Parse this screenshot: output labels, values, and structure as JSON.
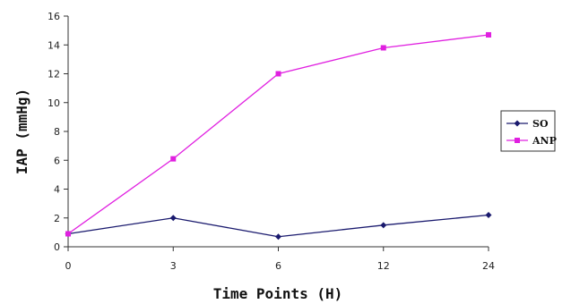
{
  "chart_data": {
    "type": "line",
    "title": "",
    "xlabel": "Time Points (H)",
    "ylabel": "IAP (mmHg)",
    "categories": [
      "0",
      "3",
      "6",
      "12",
      "24"
    ],
    "ylim": [
      0,
      16
    ],
    "yticks": [
      "0",
      "2",
      "4",
      "6",
      "8",
      "10",
      "12",
      "14",
      "16"
    ],
    "grid": false,
    "legend_position": "right",
    "series": [
      {
        "name": "SO",
        "values": [
          0.9,
          2.0,
          0.7,
          1.5,
          2.2
        ],
        "color": "#1a1a6e",
        "marker": "diamond"
      },
      {
        "name": "ANP",
        "values": [
          0.9,
          6.1,
          12.0,
          13.8,
          14.7
        ],
        "color": "#e020e0",
        "marker": "square"
      }
    ]
  }
}
